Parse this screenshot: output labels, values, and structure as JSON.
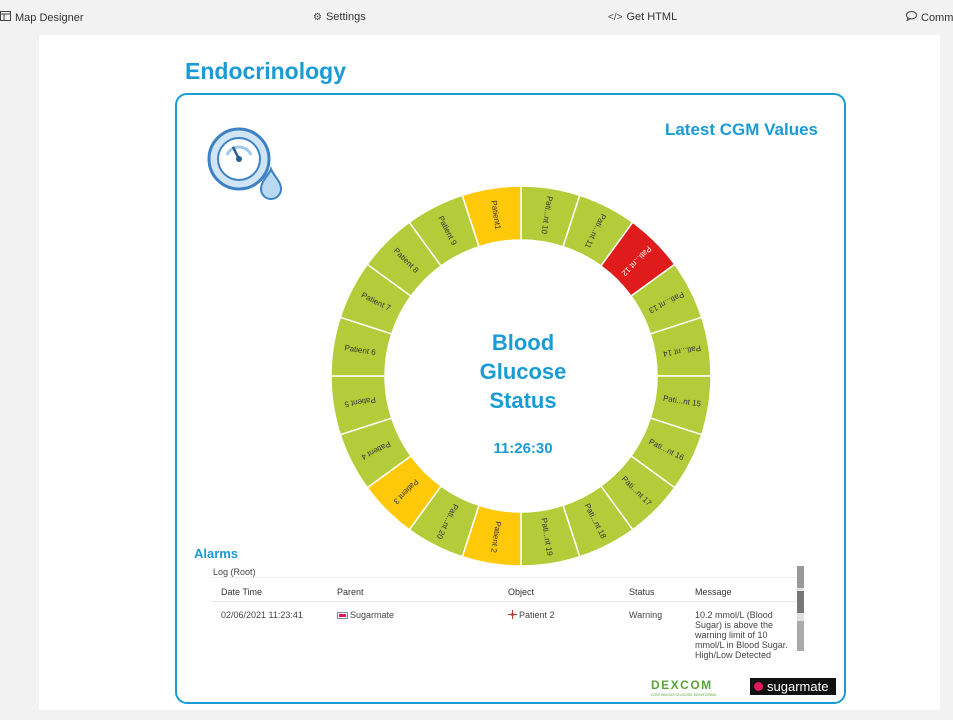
{
  "toolbar": {
    "map_designer": "Map Designer",
    "settings": "Settings",
    "get_html": "Get HTML",
    "comments": "Comm"
  },
  "page": {
    "title": "Endocrinology"
  },
  "panel": {
    "title": "Latest CGM Values",
    "center_line1": "Blood",
    "center_line2": "Glucose",
    "center_line3": "Status",
    "time": "11:26:30"
  },
  "colors": {
    "ok": "#b5cc3a",
    "warning": "#ffc90a",
    "alarm": "#e01b1b",
    "accent": "#1a9bd6"
  },
  "ring_segments": [
    {
      "label": "Pati...nt 10",
      "status": "ok"
    },
    {
      "label": "Pati...nt 11",
      "status": "ok"
    },
    {
      "label": "Pati...nt 12",
      "status": "alarm"
    },
    {
      "label": "Pati...nt 13",
      "status": "ok"
    },
    {
      "label": "Pati...nt 14",
      "status": "ok"
    },
    {
      "label": "Pati...nt 15",
      "status": "ok"
    },
    {
      "label": "Pati...nt 16",
      "status": "ok"
    },
    {
      "label": "Pati...nt 17",
      "status": "ok"
    },
    {
      "label": "Pati...nt 18",
      "status": "ok"
    },
    {
      "label": "Pati...nt 19",
      "status": "ok"
    },
    {
      "label": "Patient 2",
      "status": "warning"
    },
    {
      "label": "Pati...nt 20",
      "status": "ok"
    },
    {
      "label": "Patient 3",
      "status": "warning"
    },
    {
      "label": "Patient 4",
      "status": "ok"
    },
    {
      "label": "Patient 5",
      "status": "ok"
    },
    {
      "label": "Patient 6",
      "status": "ok"
    },
    {
      "label": "Patient 7",
      "status": "ok"
    },
    {
      "label": "Patient 8",
      "status": "ok"
    },
    {
      "label": "Patient 9",
      "status": "ok"
    },
    {
      "label": "Patient1",
      "status": "warning"
    }
  ],
  "alarms": {
    "title": "Alarms",
    "log": "Log (Root)",
    "columns": [
      "Date Time",
      "Parent",
      "Object",
      "Status",
      "Message"
    ],
    "rows": [
      {
        "datetime": "02/06/2021 11:23:41",
        "parent": "Sugarmate",
        "object": "Patient 2",
        "status": "Warning",
        "message": "10.2 mmol/L (Blood Sugar) is above the warning limit of 10 mmol/L in Blood Sugar. High/Low Detected"
      }
    ]
  },
  "logos": {
    "dexcom": "DEXCOM",
    "dexcom_tagline": "CONTINUOUS GLUCOSE MONITORING",
    "sugarmate": "sugarmate"
  }
}
